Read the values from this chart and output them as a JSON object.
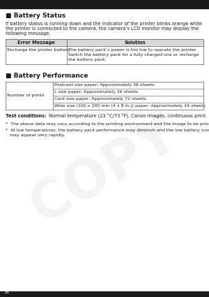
{
  "page_number": "38",
  "bg_color": "#ffffff",
  "top_bar_color": "#1a1a1a",
  "bottom_bar_color": "#1a1a1a",
  "section1_title": "■ Battery Status",
  "section1_body_lines": [
    "If battery status is running down and the indicator of the printer blinks orange while",
    "the printer is connected to the camera, the camera’s LCD monitor may display the",
    "following message."
  ],
  "table1_header": [
    "Error Message",
    "Solution"
  ],
  "table1_col1": "Recharge the printer battery",
  "table1_col2_lines": [
    "The battery pack’s power is too low to operate the printer.",
    "Switch the battery pack for a fully charged one or recharge",
    "the battery pack."
  ],
  "section2_title": "■ Battery Performance",
  "table2_col1": "Number of prints",
  "table2_col2_rows": [
    "Postcard size paper: Approximately 36 sheets",
    "L size paper: Approximately 36 sheets",
    "Card size paper: Approximately 72 sheets",
    "Wide size (100 x 200 mm (4 x 8 in.)) paper: Approximately 24 sheets"
  ],
  "test_conditions_bold": "Test conditions:",
  "test_conditions_text": " Normal temperature (23 °C/73 °F), Canon images, continuous print.",
  "footnote1": "*  The above data may vary according to the printing environment and the image to be printed.",
  "footnote2_lines": [
    "*  At low temperatures, the battery pack performance may diminish and the low battery icon",
    "   may appear very rapidly."
  ],
  "text_color": "#1a1a1a",
  "table_border_color": "#555555",
  "table_header_bg": "#d8d8d8",
  "watermark_color": "#e0e0e0",
  "font_size_title": 6.5,
  "font_size_body": 4.8,
  "font_size_table_header": 4.8,
  "font_size_table_body": 4.5,
  "font_size_footnote": 4.5,
  "font_size_page": 4.5
}
